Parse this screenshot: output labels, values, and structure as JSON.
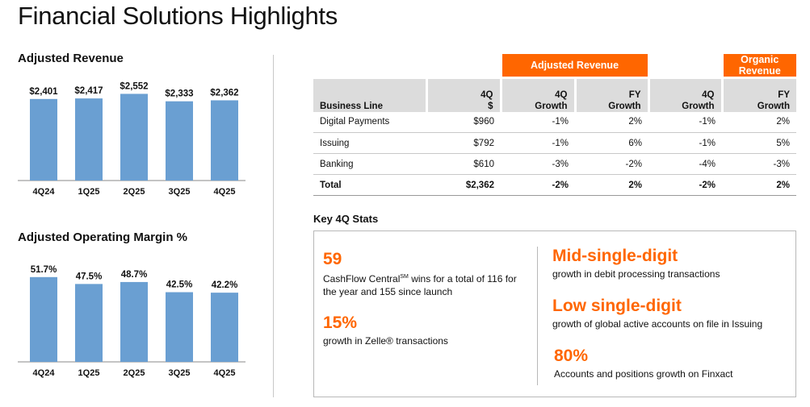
{
  "page": {
    "title": "Financial Solutions Highlights"
  },
  "colors": {
    "accent": "#ff6600",
    "bar": "#6a9fd2",
    "header_gray": "#dcdcdc"
  },
  "chart_data": [
    {
      "type": "bar",
      "title": "Adjusted Revenue",
      "categories": [
        "4Q24",
        "1Q25",
        "2Q25",
        "3Q25",
        "4Q25"
      ],
      "values": [
        2401,
        2417,
        2552,
        2333,
        2362
      ],
      "labels": [
        "$2,401",
        "$2,417",
        "$2,552",
        "$2,333",
        "$2,362"
      ],
      "ylim": [
        0,
        2800
      ]
    },
    {
      "type": "bar",
      "title": "Adjusted Operating Margin %",
      "categories": [
        "4Q24",
        "1Q25",
        "2Q25",
        "3Q25",
        "4Q25"
      ],
      "values": [
        51.7,
        47.5,
        48.7,
        42.5,
        42.2
      ],
      "labels": [
        "51.7%",
        "47.5%",
        "48.7%",
        "42.5%",
        "42.2%"
      ],
      "ylim": [
        0,
        58
      ]
    }
  ],
  "table": {
    "groups": [
      "Adjusted Revenue",
      "Organic Revenue"
    ],
    "headers": {
      "business_line": "Business Line",
      "q4_dollar": [
        "4Q",
        "$"
      ],
      "q4_growth": [
        "4Q",
        "Growth"
      ],
      "fy_growth": [
        "FY",
        "Growth"
      ],
      "org_q4_growth": [
        "4Q",
        "Growth"
      ],
      "org_fy_growth": [
        "FY",
        "Growth"
      ]
    },
    "rows": [
      {
        "name": "Digital Payments",
        "q4": "$960",
        "q4g": "-1%",
        "fyg": "2%",
        "oq4g": "-1%",
        "ofyg": "2%"
      },
      {
        "name": "Issuing",
        "q4": "$792",
        "q4g": "-1%",
        "fyg": "6%",
        "oq4g": "-1%",
        "ofyg": "5%"
      },
      {
        "name": "Banking",
        "q4": "$610",
        "q4g": "-3%",
        "fyg": "-2%",
        "oq4g": "-4%",
        "ofyg": "-3%"
      }
    ],
    "total": {
      "name": "Total",
      "q4": "$2,362",
      "q4g": "-2%",
      "fyg": "2%",
      "oq4g": "-2%",
      "ofyg": "2%"
    }
  },
  "key_stats": {
    "title": "Key 4Q Stats",
    "left": [
      {
        "num": "59",
        "desc_pre": "CashFlow Central",
        "desc_sup": "SM",
        "desc_post": " wins for a total of 116 for the year and 155 since launch"
      },
      {
        "num": "15%",
        "desc_pre": "growth in Zelle",
        "desc_sup": "®",
        "desc_post": " transactions"
      }
    ],
    "right": [
      {
        "num": "Mid-single-digit",
        "desc": "growth in debit processing transactions"
      },
      {
        "num": "Low single-digit",
        "desc": "growth of global active accounts on file in Issuing"
      },
      {
        "num": "80%",
        "desc": "Accounts and positions growth on Finxact"
      }
    ]
  }
}
